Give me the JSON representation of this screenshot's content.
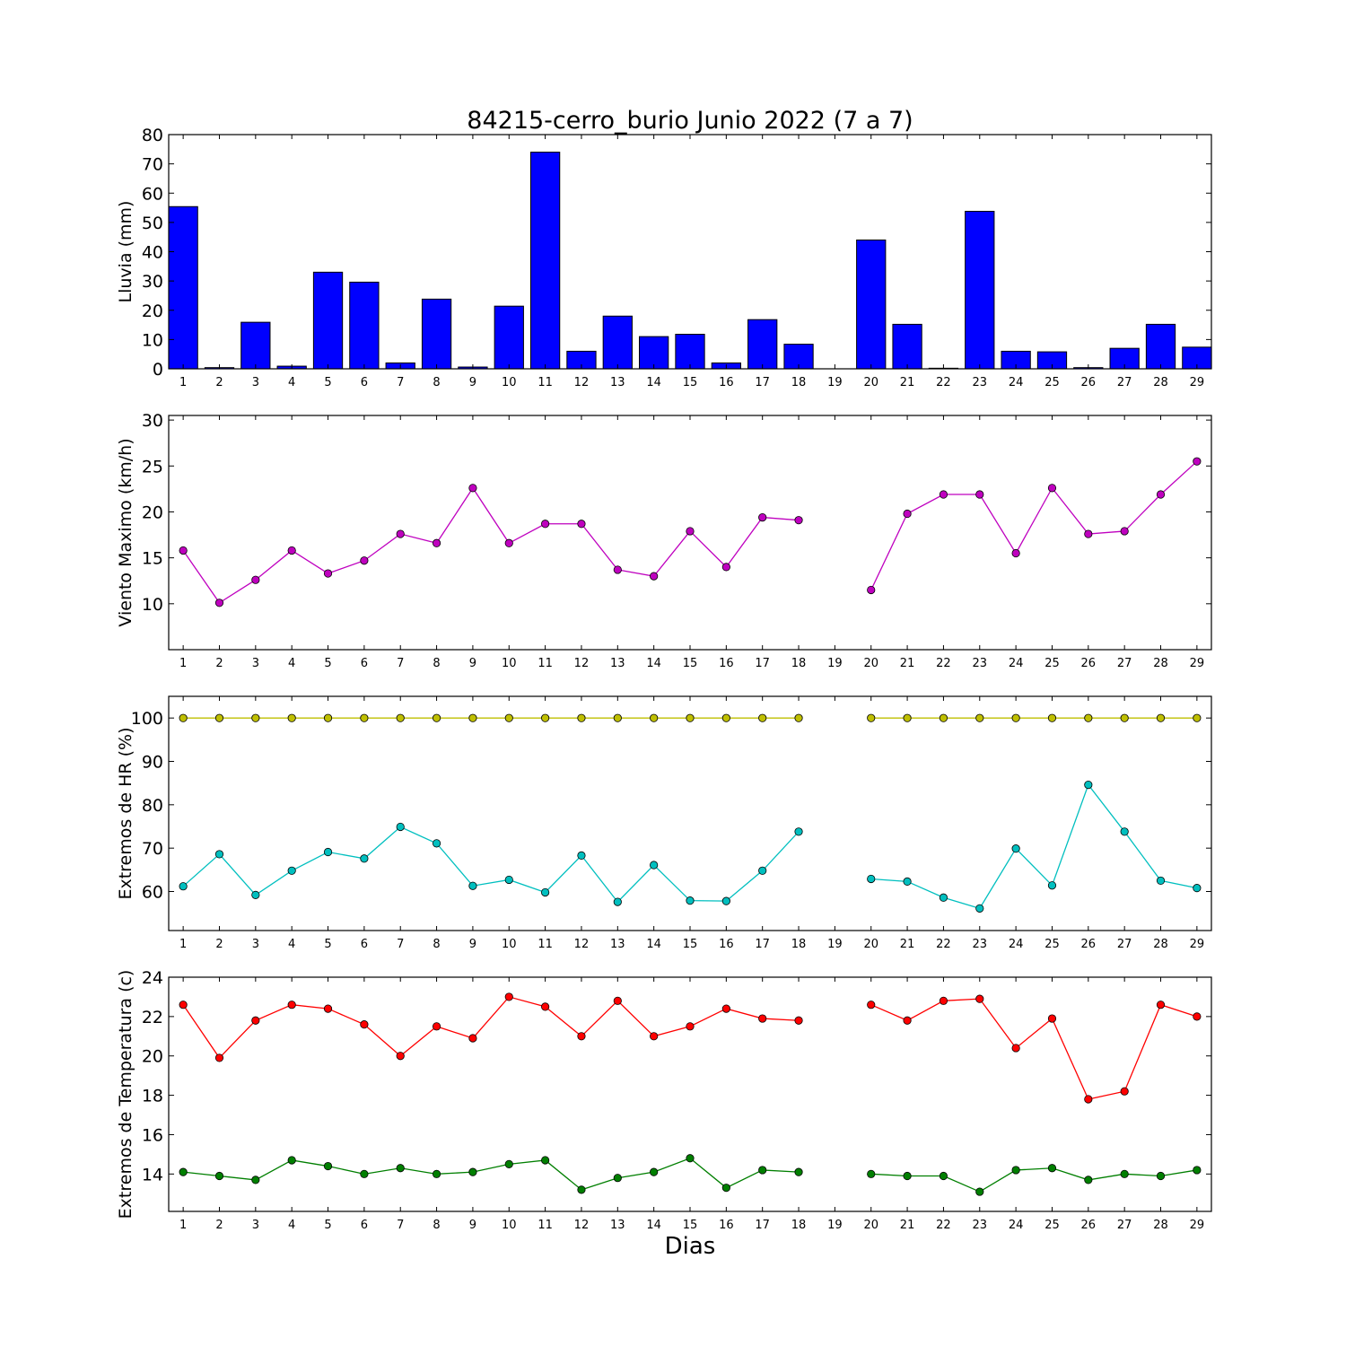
{
  "title": "84215-cerro_burio Junio 2022  (7 a 7)",
  "xlabel": "Dias",
  "chart_data": [
    {
      "type": "bar",
      "ylabel": "Lluvia (mm)",
      "ylim": [
        0,
        80
      ],
      "yticks": [
        0,
        10,
        20,
        30,
        40,
        50,
        60,
        70,
        80
      ],
      "x": [
        1,
        2,
        3,
        4,
        5,
        6,
        7,
        8,
        9,
        10,
        11,
        12,
        13,
        14,
        15,
        16,
        17,
        18,
        19,
        20,
        21,
        22,
        23,
        24,
        25,
        26,
        27,
        28,
        29
      ],
      "series": [
        {
          "color": "#0000ff",
          "values": [
            55.4,
            0.4,
            15.9,
            0.9,
            33.0,
            29.6,
            2.0,
            23.8,
            0.6,
            21.4,
            74.0,
            6.0,
            18.0,
            11.0,
            11.8,
            2.0,
            16.8,
            8.4,
            0,
            44.0,
            15.2,
            0.2,
            53.8,
            6.0,
            5.8,
            0.4,
            7.0,
            15.2,
            7.4
          ]
        }
      ]
    },
    {
      "type": "line",
      "ylabel": "Viento Maximo (km/h)",
      "ylim": [
        5,
        30.5
      ],
      "yticks": [
        10,
        15,
        20,
        25,
        30
      ],
      "x": [
        1,
        2,
        3,
        4,
        5,
        6,
        7,
        8,
        9,
        10,
        11,
        12,
        13,
        14,
        15,
        16,
        17,
        18,
        19,
        20,
        21,
        22,
        23,
        24,
        25,
        26,
        27,
        28,
        29
      ],
      "series": [
        {
          "color": "#bf00bf",
          "values": [
            15.8,
            10.1,
            12.6,
            15.8,
            13.3,
            14.7,
            17.6,
            16.6,
            22.6,
            16.6,
            18.7,
            18.7,
            13.7,
            13.0,
            17.9,
            14.0,
            19.4,
            19.1,
            null,
            11.5,
            19.8,
            21.9,
            21.9,
            15.5,
            22.6,
            17.6,
            17.9,
            21.9,
            25.5
          ]
        }
      ]
    },
    {
      "type": "line",
      "ylabel": "Extremos de HR (%)",
      "ylim": [
        51,
        105
      ],
      "yticks": [
        60,
        70,
        80,
        90,
        100
      ],
      "x": [
        1,
        2,
        3,
        4,
        5,
        6,
        7,
        8,
        9,
        10,
        11,
        12,
        13,
        14,
        15,
        16,
        17,
        18,
        19,
        20,
        21,
        22,
        23,
        24,
        25,
        26,
        27,
        28,
        29
      ],
      "series": [
        {
          "color": "#bfbf00",
          "values": [
            100,
            100,
            100,
            100,
            100,
            100,
            100,
            100,
            100,
            100,
            100,
            100,
            100,
            100,
            100,
            100,
            100,
            100,
            null,
            100,
            100,
            100,
            100,
            100,
            100,
            100,
            100,
            100,
            100
          ]
        },
        {
          "color": "#00bfbf",
          "values": [
            61.2,
            68.6,
            59.2,
            64.8,
            69.1,
            67.6,
            74.9,
            71.1,
            61.3,
            62.7,
            59.8,
            68.3,
            57.6,
            66.1,
            57.9,
            57.8,
            64.8,
            73.8,
            null,
            62.9,
            62.3,
            58.6,
            56.1,
            69.9,
            61.4,
            84.6,
            73.8,
            62.5,
            60.8
          ]
        }
      ]
    },
    {
      "type": "line",
      "ylabel": "Extremos de Temperatura (c)",
      "ylim": [
        12.1,
        24
      ],
      "yticks": [
        14,
        16,
        18,
        20,
        22,
        24
      ],
      "x": [
        1,
        2,
        3,
        4,
        5,
        6,
        7,
        8,
        9,
        10,
        11,
        12,
        13,
        14,
        15,
        16,
        17,
        18,
        19,
        20,
        21,
        22,
        23,
        24,
        25,
        26,
        27,
        28,
        29
      ],
      "series": [
        {
          "color": "#ff0000",
          "values": [
            22.6,
            19.9,
            21.8,
            22.6,
            22.4,
            21.6,
            20.0,
            21.5,
            20.9,
            23.0,
            22.5,
            21.0,
            22.8,
            21.0,
            21.5,
            22.4,
            21.9,
            21.8,
            null,
            22.6,
            21.8,
            22.8,
            22.9,
            20.4,
            21.9,
            17.8,
            18.2,
            22.6,
            22.0
          ]
        },
        {
          "color": "#007f00",
          "values": [
            14.1,
            13.9,
            13.7,
            14.7,
            14.4,
            14.0,
            14.3,
            14.0,
            14.1,
            14.5,
            14.7,
            13.2,
            13.8,
            14.1,
            14.8,
            13.3,
            14.2,
            14.1,
            null,
            14.0,
            13.9,
            13.9,
            13.1,
            14.2,
            14.3,
            13.7,
            14.0,
            13.9,
            14.2
          ]
        }
      ]
    }
  ]
}
